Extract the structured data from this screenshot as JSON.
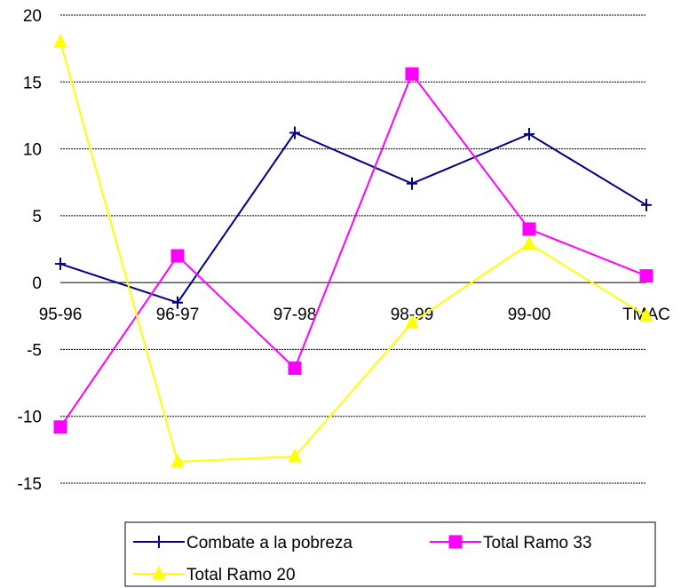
{
  "chart_data": {
    "type": "line",
    "categories": [
      "95-96",
      "96-97",
      "97-98",
      "98-99",
      "99-00",
      "TMAC"
    ],
    "ylim": [
      -15,
      20
    ],
    "yticks": [
      20,
      15,
      10,
      5,
      0,
      -5,
      -10,
      -15
    ],
    "grid": "horizontal-dashed",
    "legend_position": "bottom",
    "series": [
      {
        "name": "Combate a la pobreza",
        "color": "#000080",
        "marker": "cross",
        "values": [
          1.4,
          -1.5,
          11.2,
          7.4,
          11.1,
          5.8
        ]
      },
      {
        "name": "Total Ramo 33",
        "color": "#ff00ff",
        "marker": "square",
        "values": [
          -10.8,
          2.0,
          -6.4,
          15.6,
          4.0,
          0.5
        ]
      },
      {
        "name": "Total Ramo 20",
        "color": "#ffff00",
        "marker": "triangle",
        "values": [
          18.0,
          -13.4,
          -13.0,
          -3.0,
          2.9,
          -2.5
        ]
      }
    ]
  }
}
